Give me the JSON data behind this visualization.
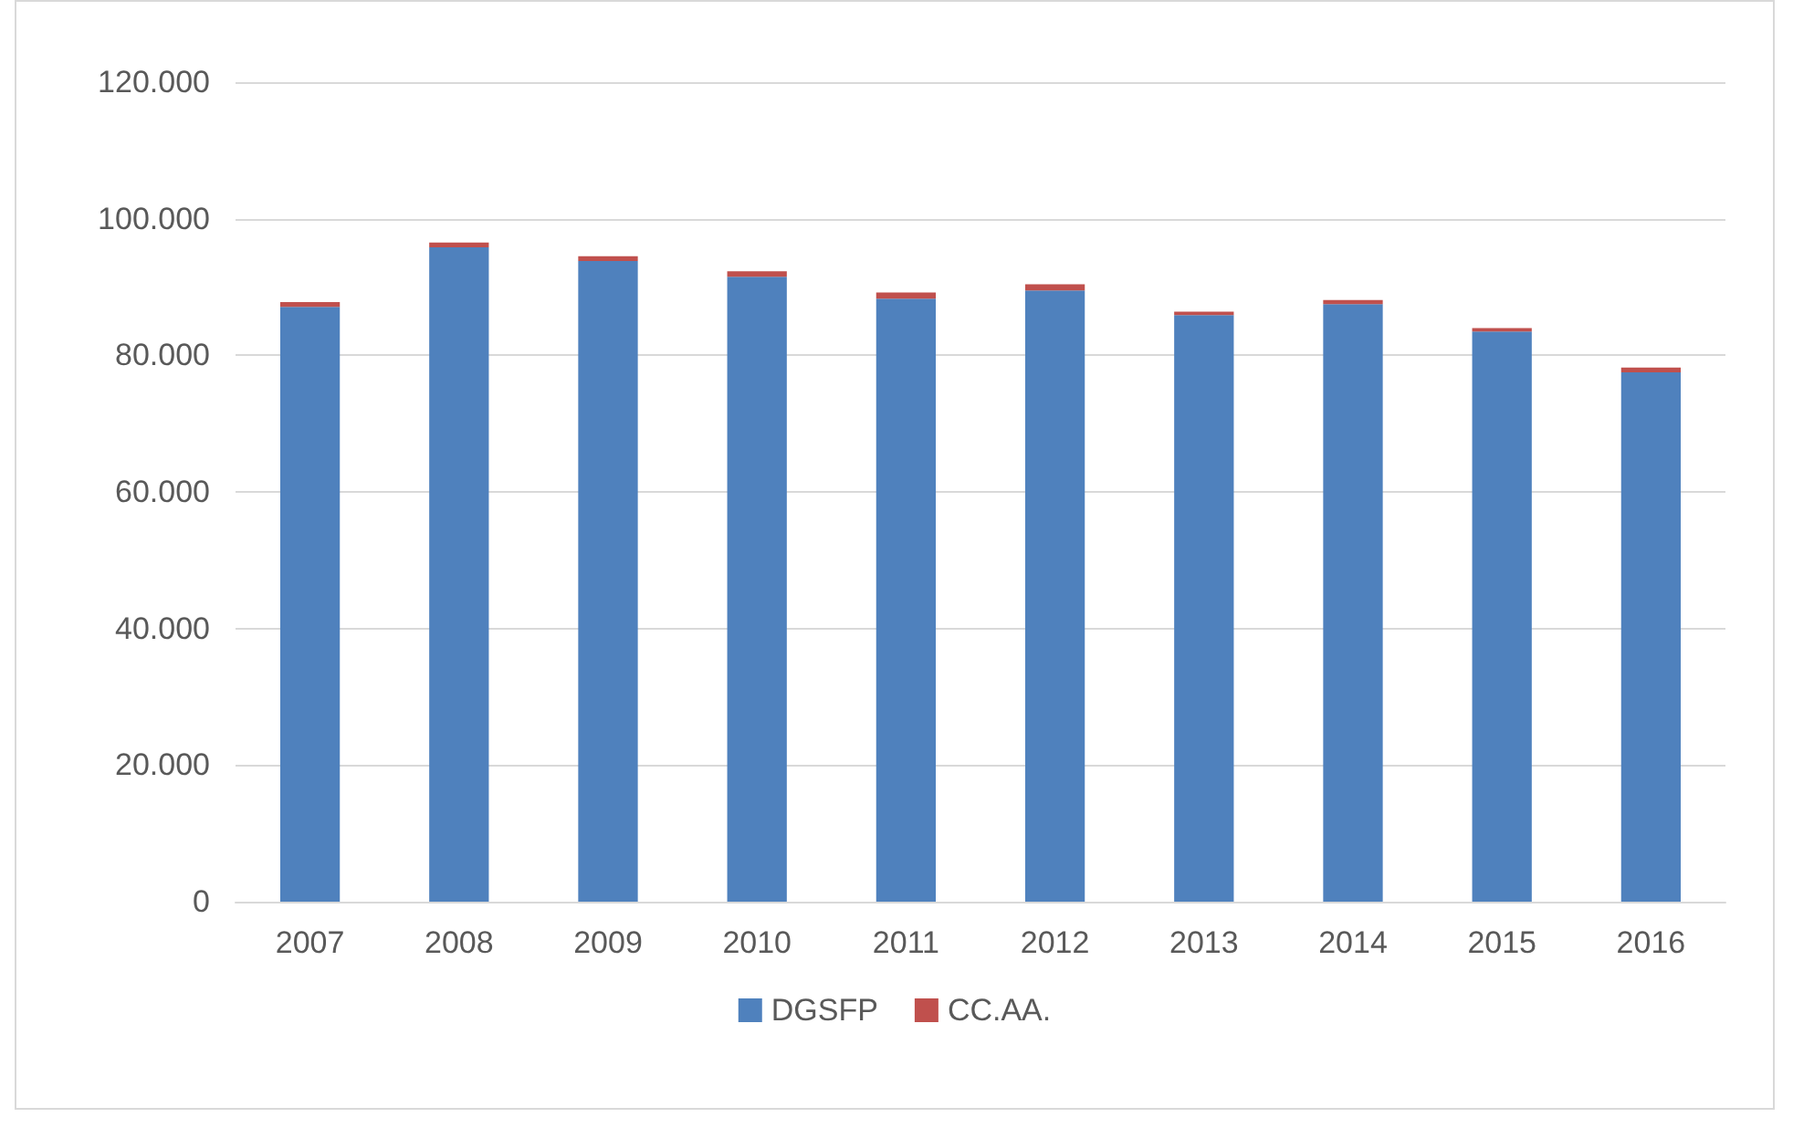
{
  "chart_data": {
    "type": "bar",
    "stacked": true,
    "categories": [
      "2007",
      "2008",
      "2009",
      "2010",
      "2011",
      "2012",
      "2013",
      "2014",
      "2015",
      "2016"
    ],
    "series": [
      {
        "name": "DGSFP",
        "color": "#4f81bd",
        "values": [
          87100,
          95800,
          93800,
          91500,
          88300,
          89500,
          85900,
          87500,
          83500,
          77500
        ]
      },
      {
        "name": "CC.AA.",
        "color": "#c0504d",
        "values": [
          700,
          700,
          700,
          800,
          900,
          900,
          500,
          600,
          500,
          700
        ]
      }
    ],
    "ylim": [
      0,
      120000
    ],
    "yticks": [
      {
        "value": 0,
        "label": "0"
      },
      {
        "value": 20000,
        "label": "20.000"
      },
      {
        "value": 40000,
        "label": "40.000"
      },
      {
        "value": 60000,
        "label": "60.000"
      },
      {
        "value": 80000,
        "label": "80.000"
      },
      {
        "value": 100000,
        "label": "100.000"
      },
      {
        "value": 120000,
        "label": "120.000"
      }
    ],
    "grid": "y",
    "legend": "bottom"
  }
}
